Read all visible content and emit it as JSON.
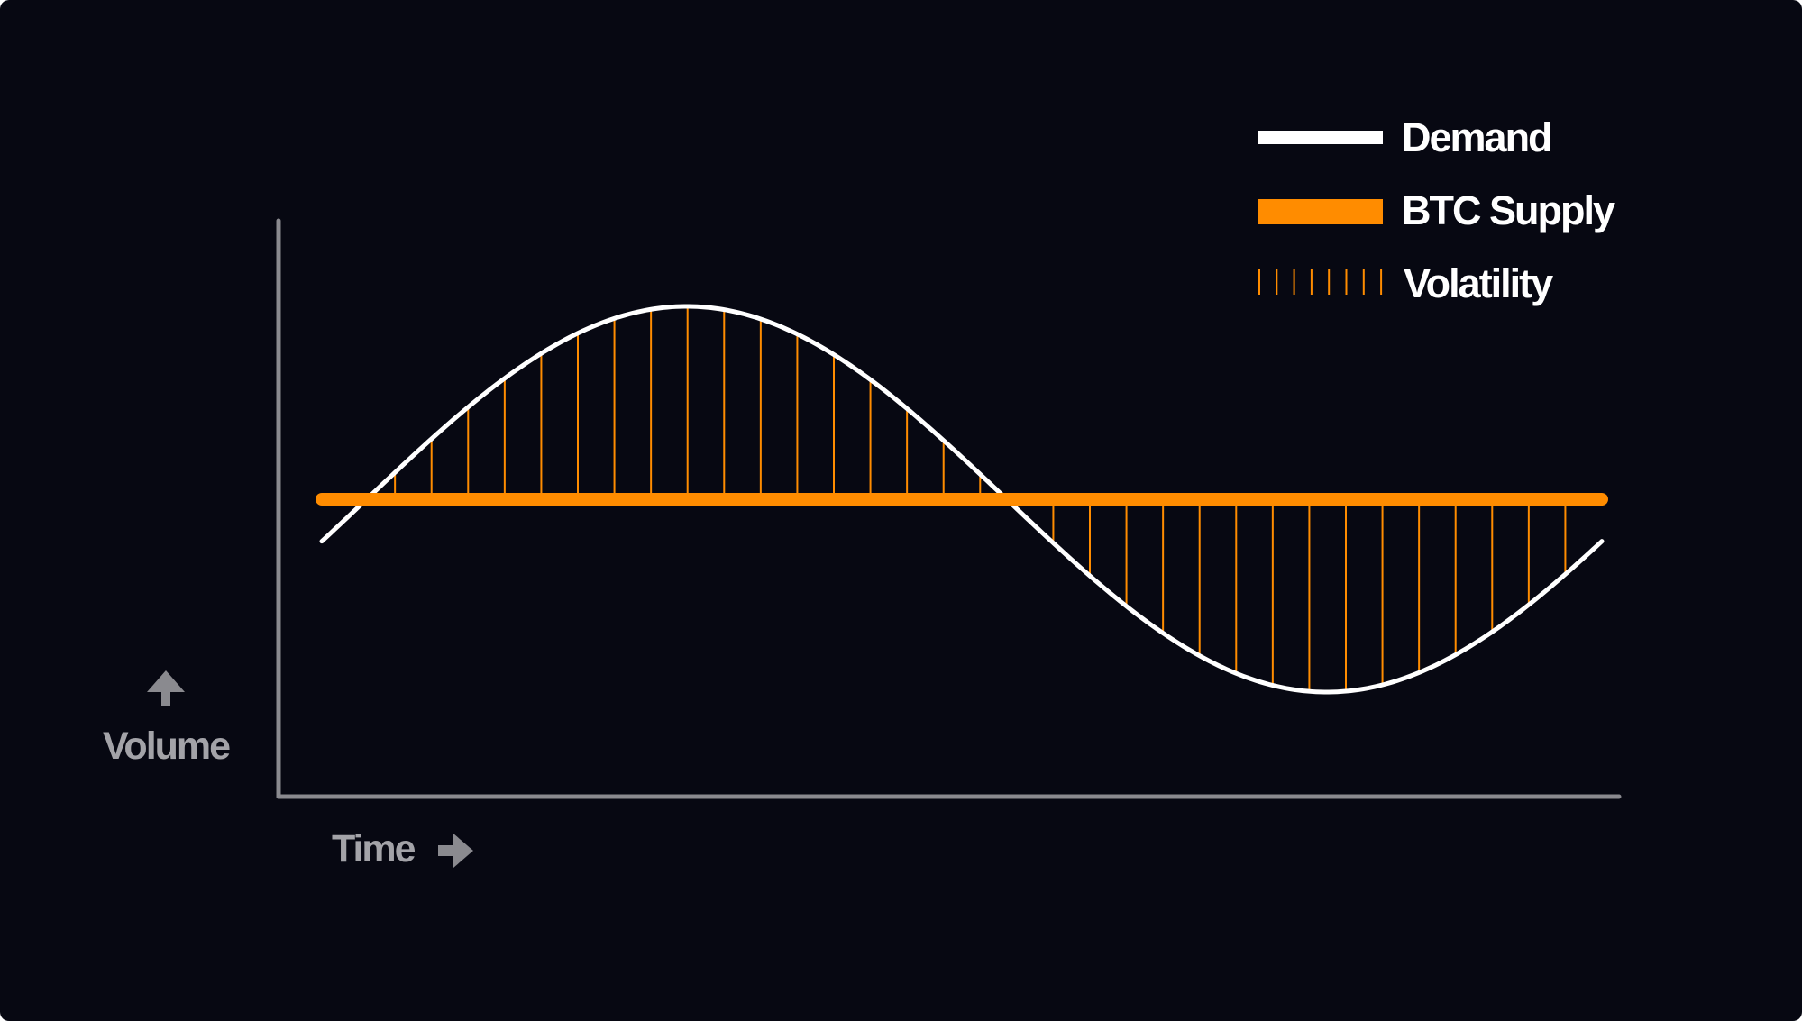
{
  "colors": {
    "background": "#070812",
    "demand": "#ffffff",
    "supply": "#ff8c00",
    "volatility": "#ff8c00",
    "axis": "#8a8a8f",
    "axis_text": "#a3a3a8",
    "legend_text": "#ffffff"
  },
  "chart_data": {
    "type": "line",
    "xlabel": "Time",
    "ylabel": "Volume",
    "xlim": [
      0,
      1
    ],
    "ylim": [
      -1.45,
      1.45
    ],
    "grid": false,
    "axis_ticks": false,
    "legend_placement": "top-right",
    "legend": [
      {
        "label": "Demand",
        "style": "thick line",
        "color": "#ffffff"
      },
      {
        "label": "BTC Supply",
        "style": "thicker line",
        "color": "#ff8c00"
      },
      {
        "label": "Volatility",
        "style": "vertical hatching",
        "color": "#ff8c00"
      }
    ],
    "series": [
      {
        "name": "Demand",
        "shape": "one full sine cycle",
        "phase_offset": 0.035,
        "amplitude": 1.0
      },
      {
        "name": "BTC Supply",
        "constant_value": 0
      }
    ],
    "volatility": {
      "description": "area between Demand and BTC Supply",
      "hatch_lines": 34
    }
  }
}
